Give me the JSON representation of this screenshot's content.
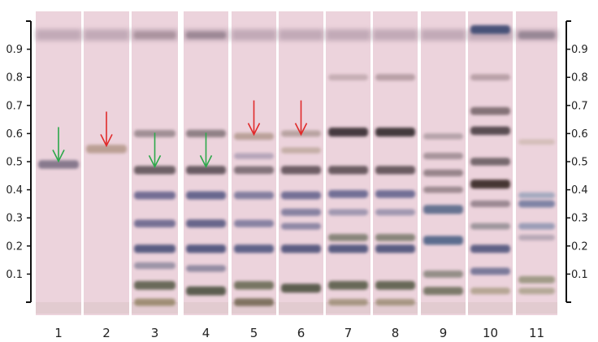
{
  "chart_data": {
    "type": "tlc-plate",
    "axis": {
      "rf_ticks": [
        "0.9",
        "0.8",
        "0.7",
        "0.6",
        "0.5",
        "0.4",
        "0.3",
        "0.2",
        "0.1"
      ],
      "rf_values": [
        0.9,
        0.8,
        0.7,
        0.6,
        0.5,
        0.4,
        0.3,
        0.2,
        0.1
      ]
    },
    "lanes": [
      {
        "label": "1",
        "bands": [
          {
            "rf": 0.49,
            "color": "#7b6e84",
            "strength": 0.9
          }
        ],
        "arrow": {
          "rf": 0.49,
          "color": "#2ca84a"
        }
      },
      {
        "label": "2",
        "bands": [
          {
            "rf": 0.545,
            "color": "#b69a8c",
            "strength": 0.9
          }
        ],
        "arrow": {
          "rf": 0.545,
          "color": "#e02a2a"
        }
      },
      {
        "label": "3",
        "bands": [
          {
            "rf": 0.95,
            "color": "#a28b95",
            "strength": 0.6
          },
          {
            "rf": 0.6,
            "color": "#8a7c80",
            "strength": 0.7
          },
          {
            "rf": 0.47,
            "color": "#5f5258",
            "strength": 0.9
          },
          {
            "rf": 0.38,
            "color": "#5c5a86",
            "strength": 0.8
          },
          {
            "rf": 0.28,
            "color": "#5e5d86",
            "strength": 0.8
          },
          {
            "rf": 0.19,
            "color": "#4a5078",
            "strength": 0.9
          },
          {
            "rf": 0.13,
            "color": "#7c7a92",
            "strength": 0.6
          },
          {
            "rf": 0.06,
            "color": "#5f6250",
            "strength": 0.95
          },
          {
            "rf": 0.0,
            "color": "#8a7c58",
            "strength": 0.7
          }
        ],
        "arrow": {
          "rf": 0.47,
          "color": "#2ca84a"
        }
      },
      {
        "label": "4",
        "bands": [
          {
            "rf": 0.95,
            "color": "#8e7c88",
            "strength": 0.6
          },
          {
            "rf": 0.6,
            "color": "#7a6d72",
            "strength": 0.75
          },
          {
            "rf": 0.47,
            "color": "#5a4e54",
            "strength": 0.9
          },
          {
            "rf": 0.38,
            "color": "#525682",
            "strength": 0.85
          },
          {
            "rf": 0.28,
            "color": "#53547e",
            "strength": 0.85
          },
          {
            "rf": 0.19,
            "color": "#474d78",
            "strength": 0.9
          },
          {
            "rf": 0.12,
            "color": "#6f6f8c",
            "strength": 0.6
          },
          {
            "rf": 0.04,
            "color": "#54584a",
            "strength": 1.0
          }
        ],
        "arrow": {
          "rf": 0.47,
          "color": "#2ca84a"
        }
      },
      {
        "label": "5",
        "bands": [
          {
            "rf": 0.59,
            "color": "#a99082",
            "strength": 0.65
          },
          {
            "rf": 0.52,
            "color": "#9a8ea8",
            "strength": 0.5
          },
          {
            "rf": 0.47,
            "color": "#6e6068",
            "strength": 0.8
          },
          {
            "rf": 0.38,
            "color": "#6a6a92",
            "strength": 0.75
          },
          {
            "rf": 0.28,
            "color": "#6a6a92",
            "strength": 0.7
          },
          {
            "rf": 0.19,
            "color": "#4f5680",
            "strength": 0.9
          },
          {
            "rf": 0.06,
            "color": "#696b55",
            "strength": 0.9
          },
          {
            "rf": 0.0,
            "color": "#6c6048",
            "strength": 0.8
          }
        ],
        "arrow": {
          "rf": 0.585,
          "color": "#e02a2a"
        }
      },
      {
        "label": "6",
        "bands": [
          {
            "rf": 0.6,
            "color": "#a08d86",
            "strength": 0.55
          },
          {
            "rf": 0.54,
            "color": "#b19c8c",
            "strength": 0.5
          },
          {
            "rf": 0.47,
            "color": "#5e5056",
            "strength": 0.9
          },
          {
            "rf": 0.38,
            "color": "#5d5d88",
            "strength": 0.8
          },
          {
            "rf": 0.32,
            "color": "#6b6a90",
            "strength": 0.7
          },
          {
            "rf": 0.27,
            "color": "#6b6a90",
            "strength": 0.6
          },
          {
            "rf": 0.19,
            "color": "#4b5078",
            "strength": 0.9
          },
          {
            "rf": 0.05,
            "color": "#56594a",
            "strength": 1.0
          }
        ],
        "arrow": {
          "rf": 0.585,
          "color": "#e02a2a"
        }
      },
      {
        "label": "7",
        "bands": [
          {
            "rf": 0.8,
            "color": "#b29ba0",
            "strength": 0.5
          },
          {
            "rf": 0.605,
            "color": "#3d3238",
            "strength": 1.0
          },
          {
            "rf": 0.47,
            "color": "#5b4e52",
            "strength": 0.9
          },
          {
            "rf": 0.385,
            "color": "#5a5b88",
            "strength": 0.8
          },
          {
            "rf": 0.32,
            "color": "#7d7c9c",
            "strength": 0.55
          },
          {
            "rf": 0.23,
            "color": "#6c6f5e",
            "strength": 0.7
          },
          {
            "rf": 0.19,
            "color": "#4a5078",
            "strength": 0.9
          },
          {
            "rf": 0.06,
            "color": "#5d604e",
            "strength": 0.95
          },
          {
            "rf": 0.0,
            "color": "#8e8062",
            "strength": 0.6
          }
        ]
      },
      {
        "label": "8",
        "bands": [
          {
            "rf": 0.8,
            "color": "#a48c92",
            "strength": 0.6
          },
          {
            "rf": 0.605,
            "color": "#3a3036",
            "strength": 1.0
          },
          {
            "rf": 0.47,
            "color": "#5b4e52",
            "strength": 0.9
          },
          {
            "rf": 0.385,
            "color": "#5a5b88",
            "strength": 0.8
          },
          {
            "rf": 0.32,
            "color": "#7d7c9c",
            "strength": 0.55
          },
          {
            "rf": 0.23,
            "color": "#6c6f5e",
            "strength": 0.7
          },
          {
            "rf": 0.19,
            "color": "#4a5078",
            "strength": 0.9
          },
          {
            "rf": 0.06,
            "color": "#5d604e",
            "strength": 0.95
          },
          {
            "rf": 0.0,
            "color": "#8e8062",
            "strength": 0.6
          }
        ]
      },
      {
        "label": "9",
        "bands": [
          {
            "rf": 0.59,
            "color": "#9a8a90",
            "strength": 0.5
          },
          {
            "rf": 0.52,
            "color": "#8c7c82",
            "strength": 0.6
          },
          {
            "rf": 0.46,
            "color": "#7a6a70",
            "strength": 0.65
          },
          {
            "rf": 0.4,
            "color": "#7a6a70",
            "strength": 0.55
          },
          {
            "rf": 0.33,
            "color": "#616e8e",
            "strength": 1.0
          },
          {
            "rf": 0.22,
            "color": "#55678a",
            "strength": 1.0
          },
          {
            "rf": 0.1,
            "color": "#7a7a70",
            "strength": 0.7
          },
          {
            "rf": 0.04,
            "color": "#6a6c58",
            "strength": 0.85
          }
        ]
      },
      {
        "label": "10",
        "bands": [
          {
            "rf": 0.97,
            "color": "#3e4a72",
            "strength": 0.95
          },
          {
            "rf": 0.8,
            "color": "#a28a90",
            "strength": 0.55
          },
          {
            "rf": 0.68,
            "color": "#6f5f64",
            "strength": 0.8
          },
          {
            "rf": 0.61,
            "color": "#4a3d42",
            "strength": 0.9
          },
          {
            "rf": 0.5,
            "color": "#5f5358",
            "strength": 0.8
          },
          {
            "rf": 0.42,
            "color": "#3d2e2a",
            "strength": 1.0
          },
          {
            "rf": 0.35,
            "color": "#7a6a74",
            "strength": 0.6
          },
          {
            "rf": 0.27,
            "color": "#7c7a80",
            "strength": 0.55
          },
          {
            "rf": 0.19,
            "color": "#4a4f78",
            "strength": 0.85
          },
          {
            "rf": 0.11,
            "color": "#5a5f86",
            "strength": 0.7
          },
          {
            "rf": 0.04,
            "color": "#a09478",
            "strength": 0.6
          }
        ]
      },
      {
        "label": "11",
        "bands": [
          {
            "rf": 0.95,
            "color": "#8c7e8c",
            "strength": 0.7
          },
          {
            "rf": 0.57,
            "color": "#c4b0a2",
            "strength": 0.4
          },
          {
            "rf": 0.38,
            "color": "#8094b0",
            "strength": 0.5
          },
          {
            "rf": 0.35,
            "color": "#5f6c94",
            "strength": 0.7
          },
          {
            "rf": 0.27,
            "color": "#7b88a8",
            "strength": 0.6
          },
          {
            "rf": 0.23,
            "color": "#9a90a0",
            "strength": 0.45
          },
          {
            "rf": 0.08,
            "color": "#8a8a6e",
            "strength": 0.7
          },
          {
            "rf": 0.04,
            "color": "#9a9476",
            "strength": 0.55
          }
        ]
      }
    ],
    "colors": {
      "plate_background": "#ecd3dc",
      "solvent_front": "#9f8899",
      "green_arrow": "#2ca84a",
      "red_arrow": "#e02a2a"
    }
  }
}
